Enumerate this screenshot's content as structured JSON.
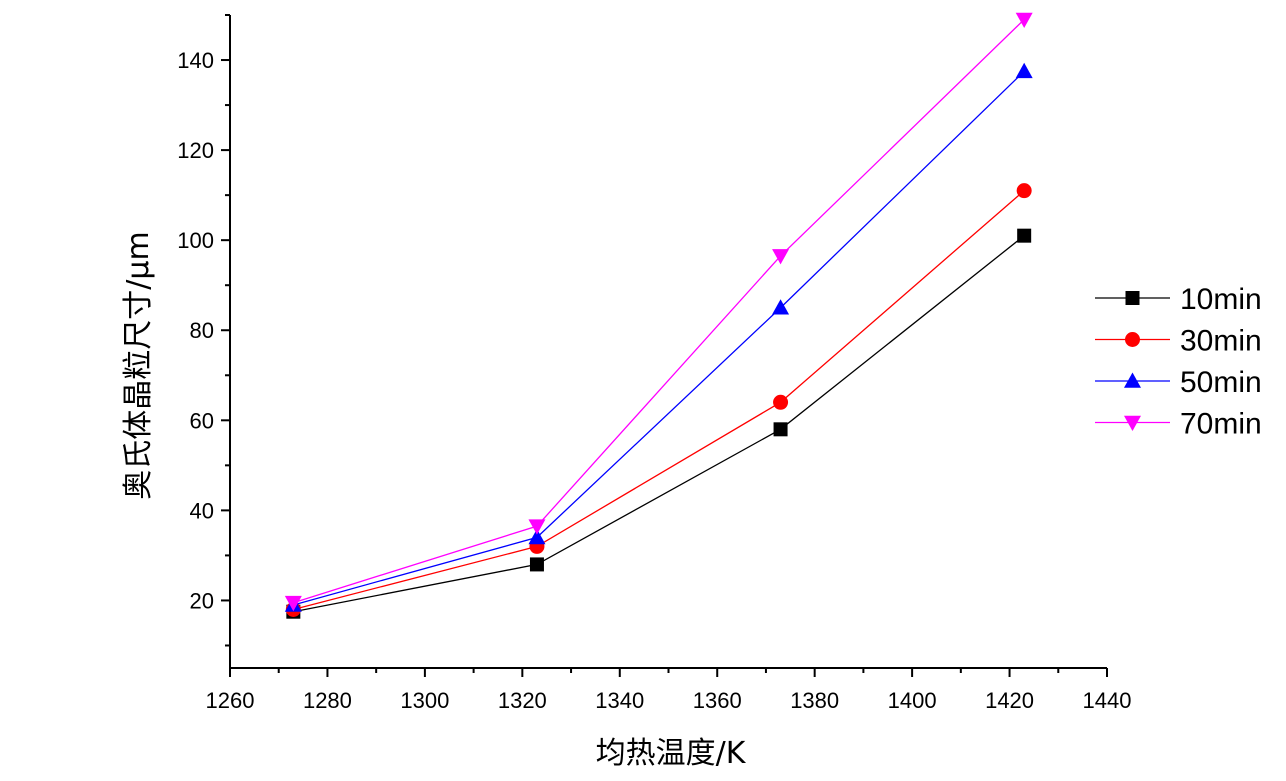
{
  "chart_data": {
    "type": "line",
    "title": "",
    "xlabel": "均热温度/K",
    "ylabel": "奥氏体晶粒尺寸/μm",
    "xlim": [
      1260,
      1440
    ],
    "ylim": [
      5,
      150
    ],
    "xticks": [
      1260,
      1280,
      1300,
      1320,
      1340,
      1360,
      1380,
      1400,
      1420,
      1440
    ],
    "yticks": [
      20,
      40,
      60,
      80,
      100,
      120,
      140
    ],
    "grid": false,
    "legend_position": "right",
    "x": [
      1273,
      1323,
      1373,
      1423
    ],
    "series": [
      {
        "name": "10min",
        "values": [
          17.5,
          28,
          58,
          101
        ],
        "color": "#000000",
        "marker": "square"
      },
      {
        "name": "30min",
        "values": [
          18,
          32,
          64,
          111
        ],
        "color": "#ff0000",
        "marker": "circle"
      },
      {
        "name": "50min",
        "values": [
          19,
          34,
          85,
          137.5
        ],
        "color": "#0000ff",
        "marker": "triangle-up"
      },
      {
        "name": "70min",
        "values": [
          19.5,
          36.5,
          96.5,
          149
        ],
        "color": "#ff00ff",
        "marker": "triangle-down"
      }
    ]
  }
}
